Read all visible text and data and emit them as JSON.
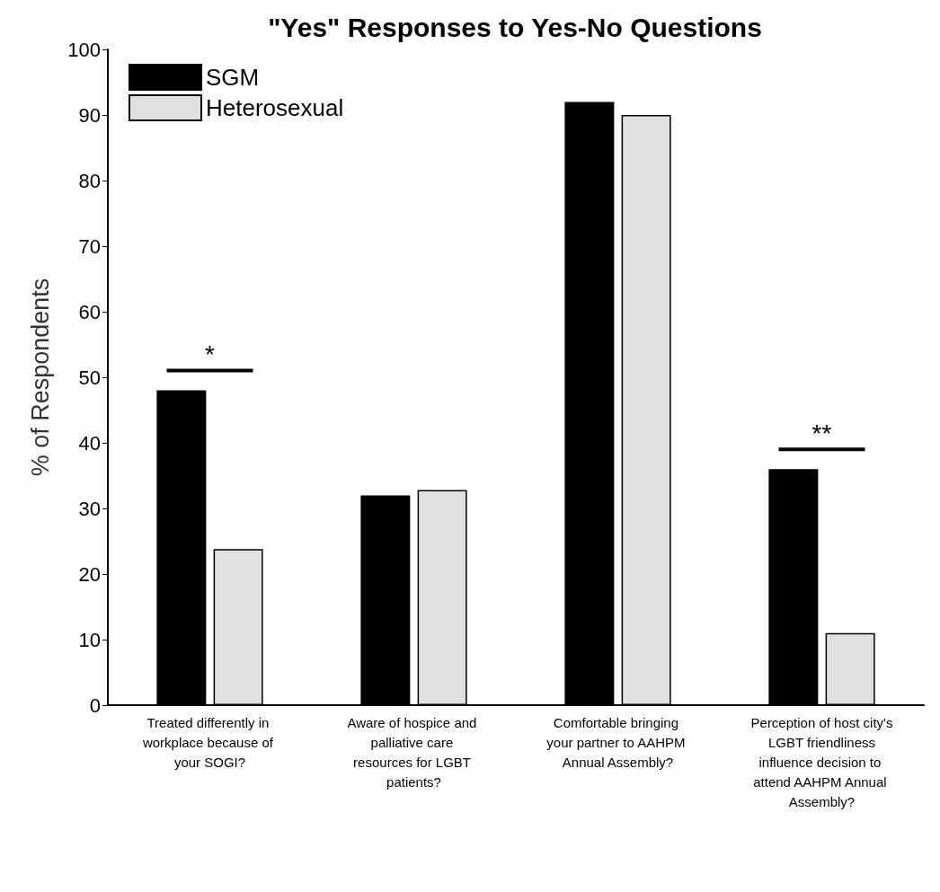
{
  "chart_data": {
    "type": "bar",
    "title": "\"Yes\" Responses to Yes-No Questions",
    "ylabel": "% of Respondents",
    "categories": [
      "Treated differently in workplace because of your SOGI?",
      "Aware of hospice and palliative care resources for LGBT patients?",
      "Comfortable bringing your partner to AAHPM Annual Assembly?",
      "Perception of host city's LGBT friendliness influence decision to attend AAHPM Annual Assembly?"
    ],
    "series": [
      {
        "name": "SGM",
        "color": "#000000",
        "values": [
          48,
          32,
          92,
          36
        ]
      },
      {
        "name": "Heterosexual",
        "color": "#e0e0e0",
        "values": [
          23.8,
          32.8,
          90,
          11
        ]
      }
    ],
    "ylim": [
      0,
      100
    ],
    "yticks": [
      0,
      10,
      20,
      30,
      40,
      50,
      60,
      70,
      80,
      90,
      100
    ],
    "grid": false,
    "legend": "top left",
    "annotations": [
      "*",
      "**"
    ]
  }
}
